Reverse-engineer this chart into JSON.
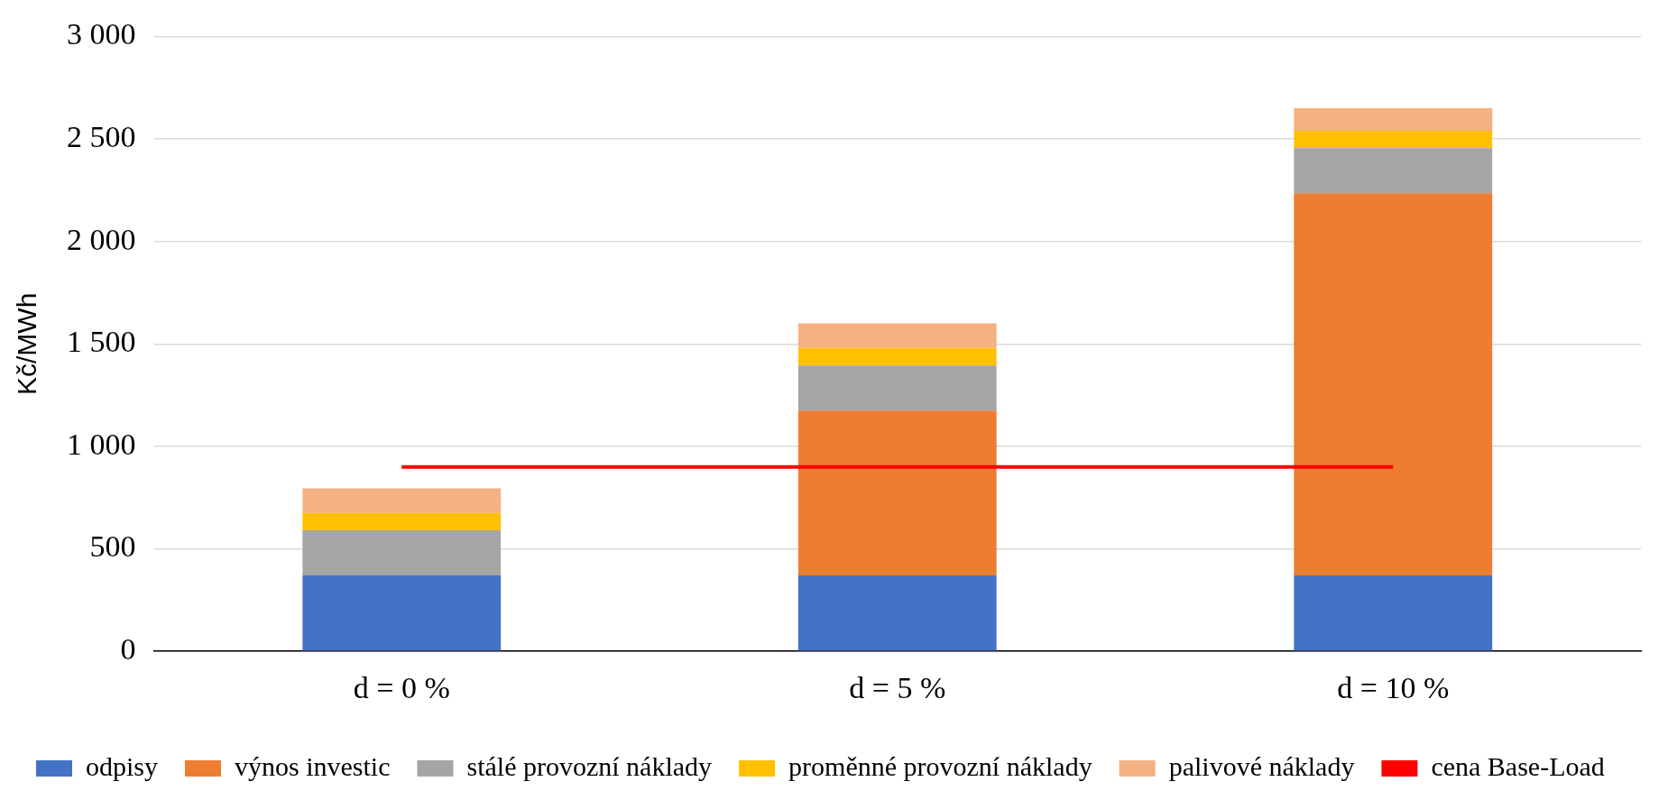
{
  "chart_data": {
    "type": "bar",
    "stacked": true,
    "ylabel": "Kč/MWh",
    "categories": [
      "d = 0 %",
      "d = 5 %",
      "d = 10 %"
    ],
    "series": [
      {
        "name": "odpisy",
        "color": "#4472c4",
        "values": [
          370,
          370,
          370
        ]
      },
      {
        "name": "výnos investic",
        "color": "#ed7d31",
        "values": [
          0,
          805,
          1865
        ]
      },
      {
        "name": "stálé provozní náklady",
        "color": "#a5a5a5",
        "values": [
          220,
          220,
          220
        ]
      },
      {
        "name": "proměnné provozní náklady",
        "color": "#ffc000",
        "values": [
          85,
          85,
          85
        ]
      },
      {
        "name": "palivové náklady",
        "color": "#f4b183",
        "values": [
          120,
          120,
          110
        ]
      },
      {
        "name": "cena Base-Load",
        "type": "line",
        "color": "#ff0000",
        "values": [
          900,
          900,
          900
        ]
      }
    ],
    "ylim": [
      0,
      3000
    ],
    "yticks": [
      {
        "value": 0,
        "label": "0"
      },
      {
        "value": 500,
        "label": "500"
      },
      {
        "value": 1000,
        "label": "1 000"
      },
      {
        "value": 1500,
        "label": "1 500"
      },
      {
        "value": 2000,
        "label": "2 000"
      },
      {
        "value": 2500,
        "label": "2 500"
      },
      {
        "value": 3000,
        "label": "3 000"
      }
    ],
    "grid": "y",
    "legend": "bottom",
    "marker": "none",
    "line_style": "solid"
  }
}
